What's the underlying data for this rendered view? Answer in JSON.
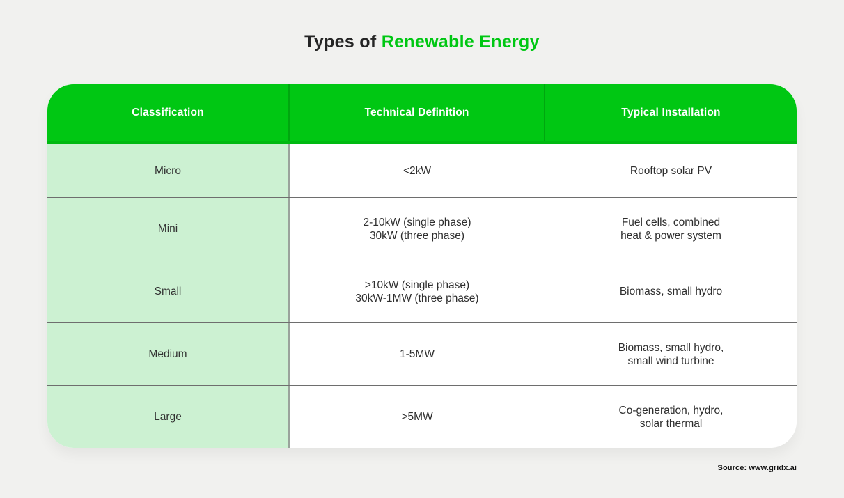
{
  "colors": {
    "background": "#f1f1ef",
    "accent_green": "#00c713",
    "light_green": "#ccf1d2",
    "header_text": "#ffffff",
    "body_text": "#2e2e2e"
  },
  "title": {
    "prefix": "Types of ",
    "highlight": "Renewable Energy"
  },
  "table": {
    "headers": [
      "Classification",
      "Technical Definition",
      "Typical Installation"
    ],
    "rows": [
      {
        "classification": "Micro",
        "definition": [
          "<2kW"
        ],
        "installation": [
          "Rooftop solar PV"
        ]
      },
      {
        "classification": "Mini",
        "definition": [
          "2-10kW (single phase)",
          "30kW (three phase)"
        ],
        "installation": [
          "Fuel cells, combined",
          "heat & power system"
        ]
      },
      {
        "classification": "Small",
        "definition": [
          ">10kW (single phase)",
          "30kW-1MW (three phase)"
        ],
        "installation": [
          "Biomass, small hydro"
        ]
      },
      {
        "classification": "Medium",
        "definition": [
          "1-5MW"
        ],
        "installation": [
          "Biomass, small hydro,",
          "small wind turbine"
        ]
      },
      {
        "classification": "Large",
        "definition": [
          ">5MW"
        ],
        "installation": [
          "Co-generation, hydro,",
          "solar thermal"
        ]
      }
    ]
  },
  "source": "Source: www.gridx.ai",
  "chart_data": {
    "type": "table",
    "title": "Types of Renewable Energy",
    "columns": [
      "Classification",
      "Technical Definition",
      "Typical Installation"
    ],
    "rows": [
      [
        "Micro",
        "<2kW",
        "Rooftop solar PV"
      ],
      [
        "Mini",
        "2-10kW (single phase) 30kW (three phase)",
        "Fuel cells, combined heat & power system"
      ],
      [
        "Small",
        ">10kW (single phase) 30kW-1MW (three phase)",
        "Biomass, small hydro"
      ],
      [
        "Medium",
        "1-5MW",
        "Biomass, small hydro, small wind turbine"
      ],
      [
        "Large",
        ">5MW",
        "Co-generation, hydro, solar thermal"
      ]
    ]
  }
}
